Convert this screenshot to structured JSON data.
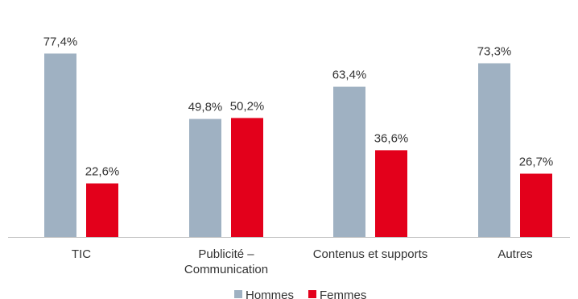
{
  "chart_data": {
    "type": "bar",
    "categories": [
      [
        "TIC"
      ],
      [
        "Publicité –",
        "Communication"
      ],
      [
        "Contenus et supports"
      ],
      [
        "Autres"
      ]
    ],
    "series": [
      {
        "name": "Hommes",
        "color": "#9fb1c2",
        "values": [
          77.4,
          49.8,
          63.4,
          73.3
        ],
        "labels": [
          "77,4%",
          "49,8%",
          "63,4%",
          "73,3%"
        ]
      },
      {
        "name": "Femmes",
        "color": "#e3001b",
        "values": [
          22.6,
          50.2,
          36.6,
          26.7
        ],
        "labels": [
          "22,6%",
          "50,2%",
          "36,6%",
          "26,7%"
        ]
      }
    ],
    "ylim": [
      0,
      100
    ],
    "grid": false,
    "legend": "bottom-center",
    "axis_color": "#bfbfbf"
  }
}
